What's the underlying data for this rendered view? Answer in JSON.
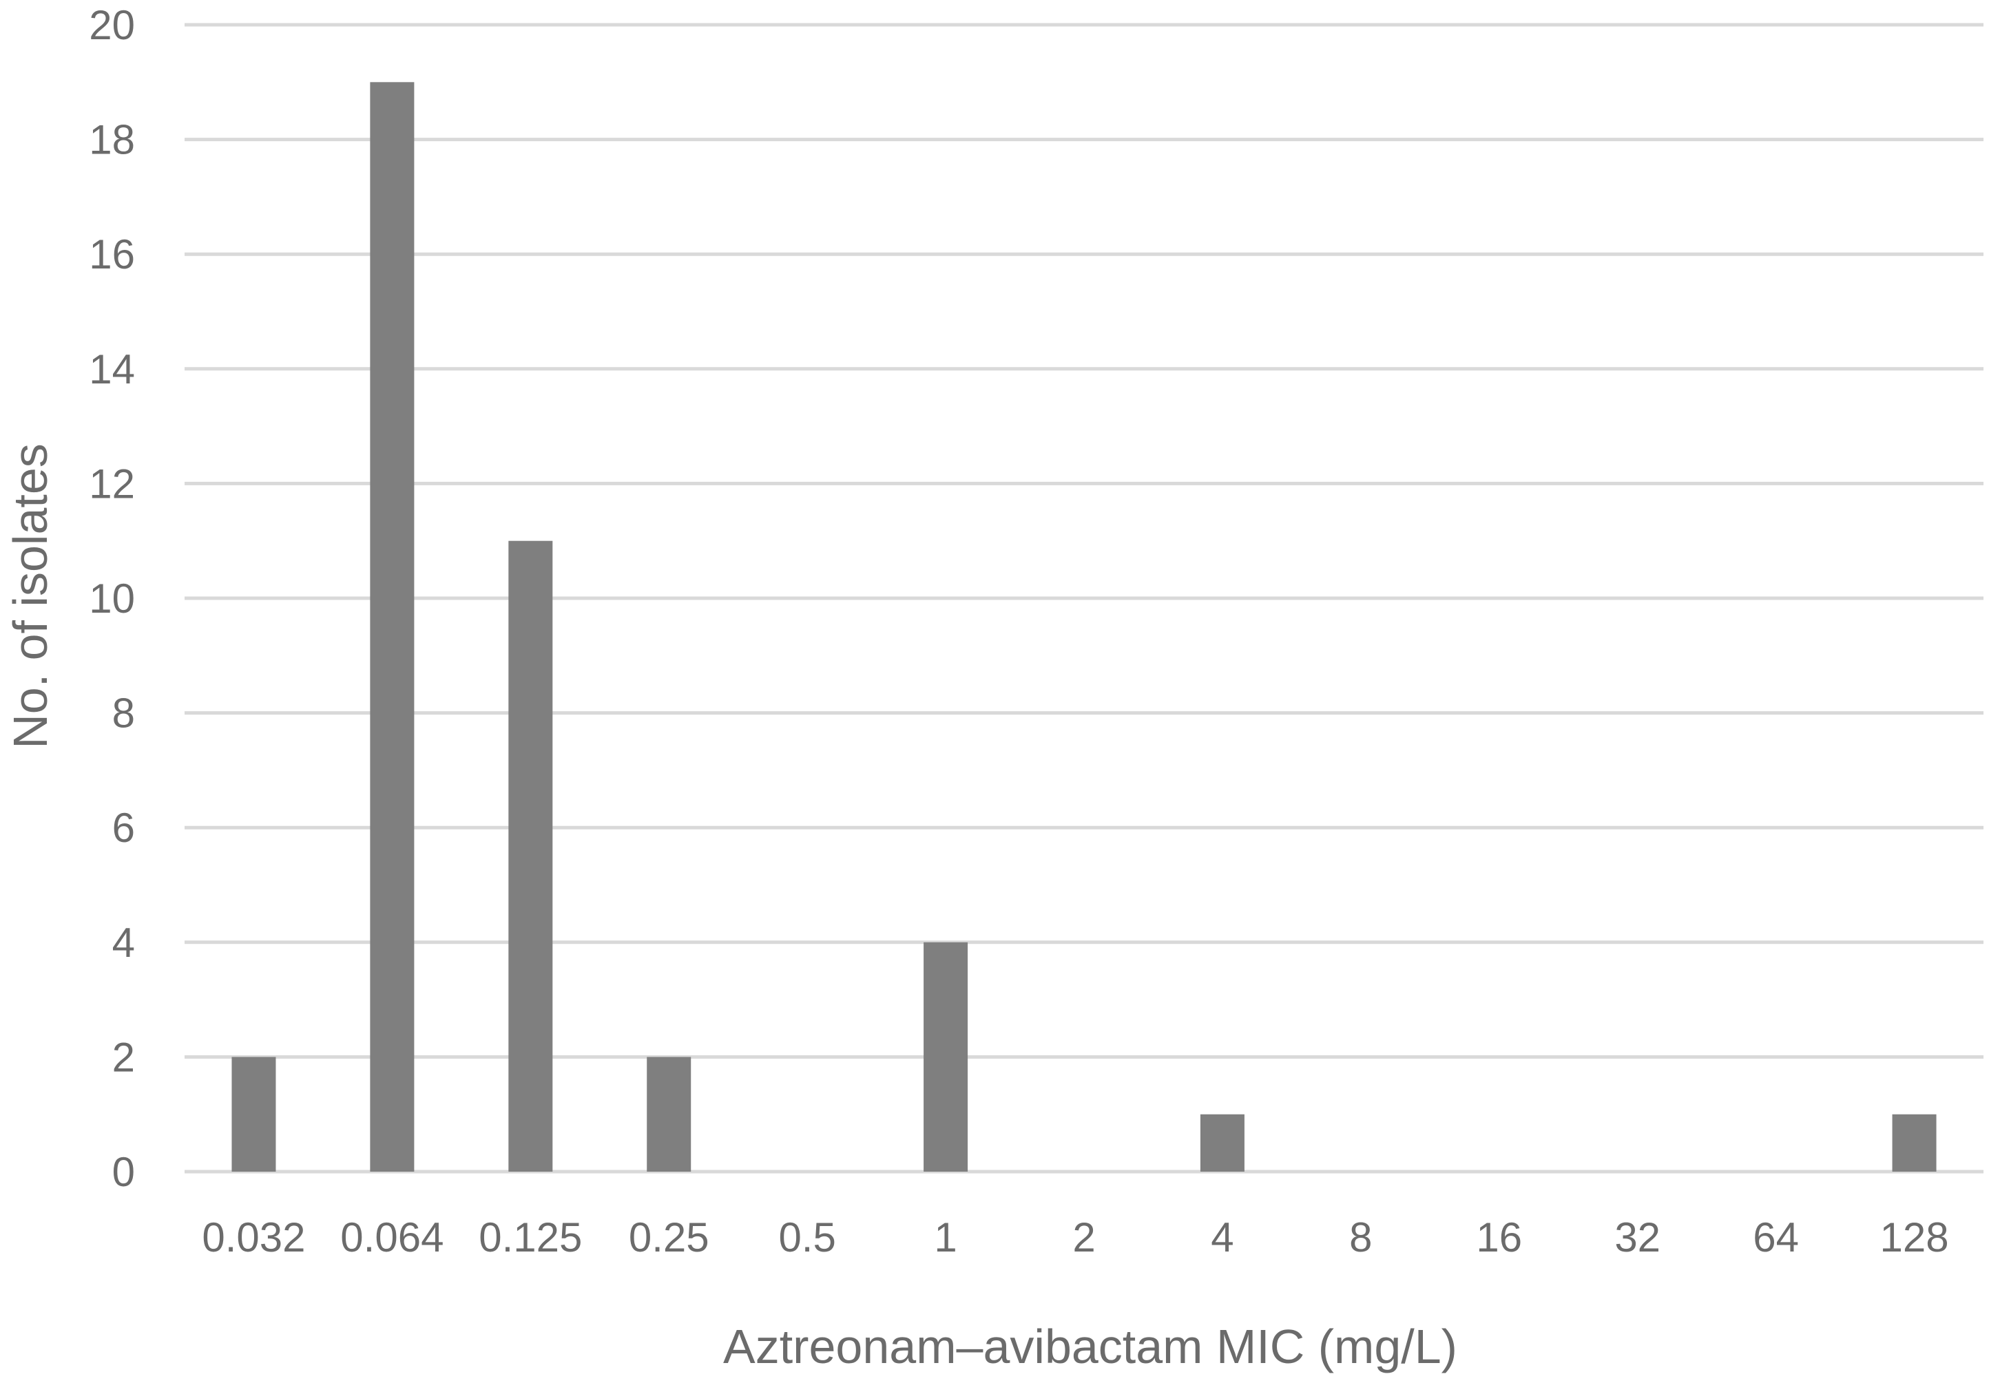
{
  "chart_data": {
    "type": "bar",
    "title": "",
    "xlabel": "Aztreonam–avibactam MIC (mg/L)",
    "ylabel": "No. of isolates",
    "categories": [
      "0.032",
      "0.064",
      "0.125",
      "0.25",
      "0.5",
      "1",
      "2",
      "4",
      "8",
      "16",
      "32",
      "64",
      "128"
    ],
    "values": [
      2,
      19,
      11,
      2,
      0,
      4,
      0,
      1,
      0,
      0,
      0,
      0,
      1
    ],
    "ylim": [
      0,
      20
    ],
    "yticks": [
      "0",
      "2",
      "4",
      "6",
      "8",
      "10",
      "12",
      "14",
      "16",
      "18",
      "20"
    ],
    "grid": true,
    "legend": "none",
    "colors": {
      "bar": "#7f7f7f",
      "grid": "#d9d9d9",
      "text": "#6b6b6b"
    }
  }
}
